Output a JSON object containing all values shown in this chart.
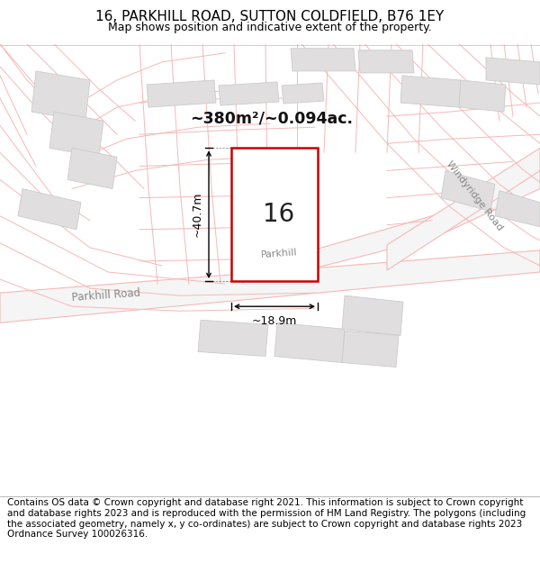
{
  "title": "16, PARKHILL ROAD, SUTTON COLDFIELD, B76 1EY",
  "subtitle": "Map shows position and indicative extent of the property.",
  "area_text": "~380m²/~0.094ac.",
  "label_16": "16",
  "dim_width": "~18.9m",
  "dim_height": "~40.7m",
  "road_label_parkhill": "Parkhill Road",
  "road_label_parkhill2": "Parkhill",
  "road_label_windyridge": "Windyridge Road",
  "footer": "Contains OS data © Crown copyright and database right 2021. This information is subject to Crown copyright and database rights 2023 and is reproduced with the permission of HM Land Registry. The polygons (including the associated geometry, namely x, y co-ordinates) are subject to Crown copyright and database rights 2023 Ordnance Survey 100026316.",
  "bg_color": "#ffffff",
  "road_line_color": "#f5b8b8",
  "road_fill_color": "#f0f0f0",
  "property_color": "#cc0000",
  "building_color": "#e0dede",
  "building_edge": "#cccccc",
  "title_fontsize": 11,
  "subtitle_fontsize": 9,
  "footer_fontsize": 7.5,
  "road_lw": 0.8,
  "road_fill_lw": 1.0
}
